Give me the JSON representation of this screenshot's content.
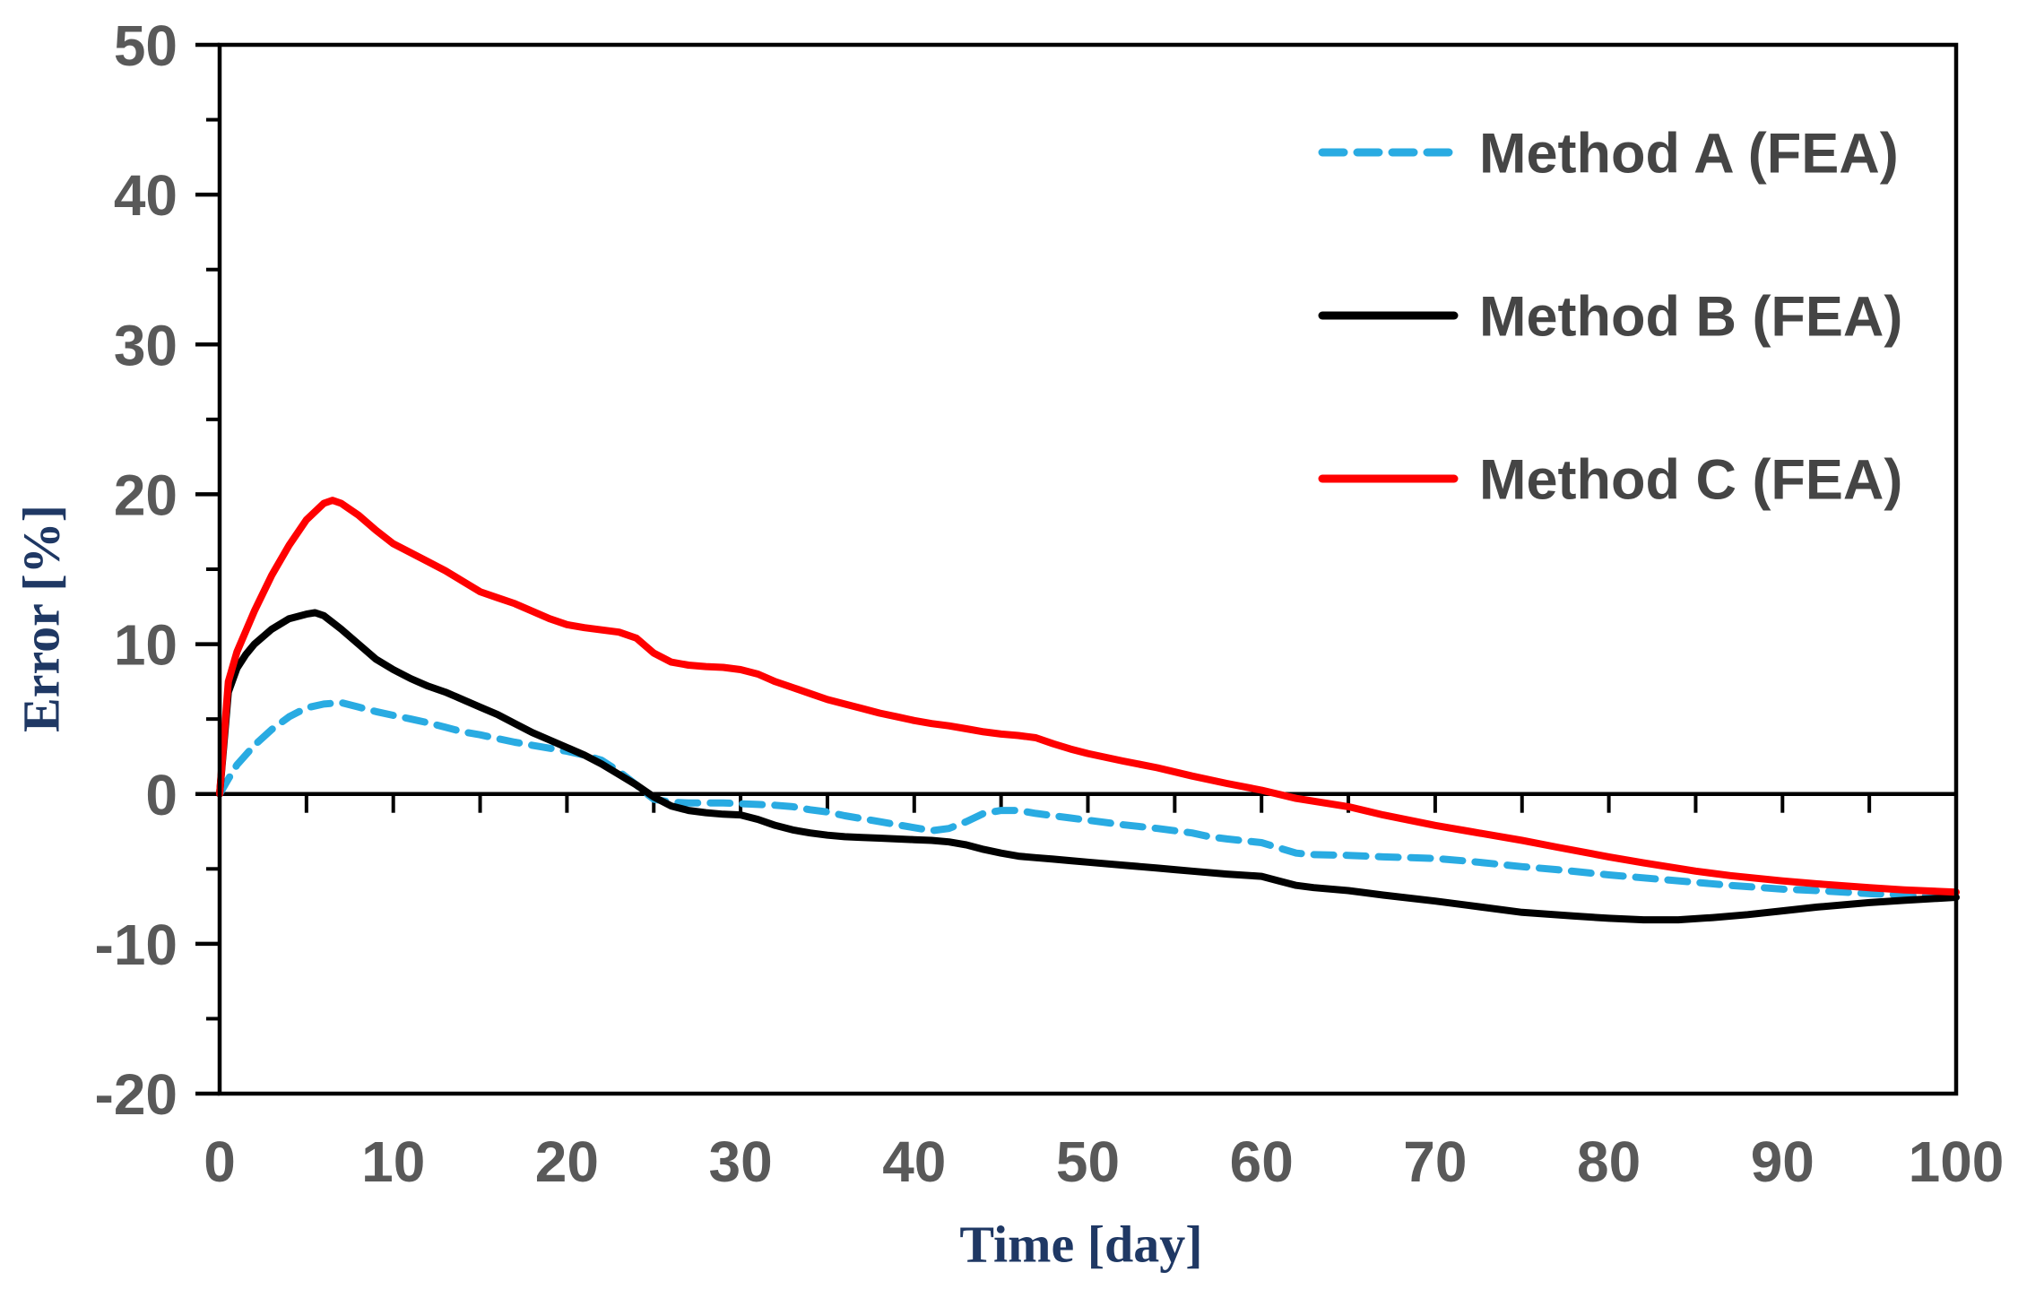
{
  "figure": {
    "background": "#ffffff"
  },
  "colors": {
    "axis_line": "#000000",
    "tick_label": "#595959",
    "legend_label": "#454545",
    "axis_title": "#1F3864",
    "method_a": "#29ABE2",
    "method_b": "#000000",
    "method_c": "#FF0000"
  },
  "chart_data": {
    "type": "line",
    "title": "",
    "xlabel": "Time [day]",
    "ylabel": "Error [%]",
    "xlim": [
      0,
      100
    ],
    "ylim": [
      -20,
      50
    ],
    "x_major_tick_step": 10,
    "x_minor_tick_step": 5,
    "y_major_tick_step": 10,
    "y_minor_tick_step": 5,
    "x_tick_labels": [
      "0",
      "10",
      "20",
      "30",
      "40",
      "50",
      "60",
      "70",
      "80",
      "90",
      "100"
    ],
    "y_tick_labels": [
      "50",
      "40",
      "30",
      "20",
      "10",
      "0",
      "-10",
      "-20"
    ],
    "grid": false,
    "zero_line": true,
    "legend_position": "upper-right-inside",
    "series": [
      {
        "name": "Method A (FEA)",
        "color": "#29ABE2",
        "style": "dashed",
        "points": [
          [
            0,
            0
          ],
          [
            0.5,
            1.0
          ],
          [
            1,
            1.95
          ],
          [
            2,
            3.25
          ],
          [
            3,
            4.3
          ],
          [
            4,
            5.15
          ],
          [
            5,
            5.75
          ],
          [
            6,
            6.0
          ],
          [
            7,
            6.1
          ],
          [
            8,
            5.8
          ],
          [
            9,
            5.5
          ],
          [
            10,
            5.25
          ],
          [
            11,
            5.0
          ],
          [
            12,
            4.75
          ],
          [
            13,
            4.45
          ],
          [
            14,
            4.15
          ],
          [
            15,
            3.95
          ],
          [
            16,
            3.7
          ],
          [
            17,
            3.45
          ],
          [
            18,
            3.25
          ],
          [
            19,
            3.05
          ],
          [
            20,
            2.85
          ],
          [
            21,
            2.6
          ],
          [
            22,
            2.25
          ],
          [
            23,
            1.5
          ],
          [
            24,
            0.6
          ],
          [
            24.5,
            0.1
          ],
          [
            25,
            -0.35
          ],
          [
            26,
            -0.55
          ],
          [
            27,
            -0.6
          ],
          [
            28,
            -0.6
          ],
          [
            29,
            -0.6
          ],
          [
            30,
            -0.65
          ],
          [
            31,
            -0.7
          ],
          [
            32,
            -0.75
          ],
          [
            33,
            -0.85
          ],
          [
            34,
            -1.05
          ],
          [
            35,
            -1.2
          ],
          [
            36,
            -1.45
          ],
          [
            37,
            -1.65
          ],
          [
            38,
            -1.85
          ],
          [
            39,
            -2.05
          ],
          [
            40,
            -2.25
          ],
          [
            41,
            -2.45
          ],
          [
            42,
            -2.3
          ],
          [
            43,
            -1.85
          ],
          [
            44,
            -1.3
          ],
          [
            45,
            -1.1
          ],
          [
            46,
            -1.1
          ],
          [
            47,
            -1.3
          ],
          [
            48,
            -1.45
          ],
          [
            49,
            -1.6
          ],
          [
            50,
            -1.75
          ],
          [
            52,
            -2.05
          ],
          [
            54,
            -2.3
          ],
          [
            55,
            -2.45
          ],
          [
            56,
            -2.6
          ],
          [
            57,
            -2.85
          ],
          [
            58,
            -3.0
          ],
          [
            60,
            -3.25
          ],
          [
            61,
            -3.6
          ],
          [
            62,
            -3.95
          ],
          [
            63,
            -4.05
          ],
          [
            65,
            -4.1
          ],
          [
            67,
            -4.2
          ],
          [
            70,
            -4.3
          ],
          [
            72,
            -4.5
          ],
          [
            75,
            -4.85
          ],
          [
            77,
            -5.05
          ],
          [
            80,
            -5.4
          ],
          [
            82,
            -5.6
          ],
          [
            85,
            -5.9
          ],
          [
            87,
            -6.1
          ],
          [
            90,
            -6.35
          ],
          [
            92,
            -6.45
          ],
          [
            95,
            -6.65
          ],
          [
            97,
            -6.75
          ],
          [
            100,
            -6.9
          ]
        ]
      },
      {
        "name": "Method B (FEA)",
        "color": "#000000",
        "style": "solid",
        "points": [
          [
            0,
            0
          ],
          [
            0.5,
            6.8
          ],
          [
            1,
            8.4
          ],
          [
            1.5,
            9.3
          ],
          [
            2,
            10.0
          ],
          [
            3,
            11.0
          ],
          [
            4,
            11.7
          ],
          [
            5,
            12.0
          ],
          [
            5.5,
            12.1
          ],
          [
            6,
            11.9
          ],
          [
            7,
            11.0
          ],
          [
            8,
            10.0
          ],
          [
            9,
            9.0
          ],
          [
            10,
            8.3
          ],
          [
            11,
            7.7
          ],
          [
            12,
            7.2
          ],
          [
            13,
            6.8
          ],
          [
            14,
            6.3
          ],
          [
            15,
            5.8
          ],
          [
            16,
            5.3
          ],
          [
            17,
            4.7
          ],
          [
            18,
            4.1
          ],
          [
            19,
            3.6
          ],
          [
            20,
            3.1
          ],
          [
            21,
            2.6
          ],
          [
            22,
            2.0
          ],
          [
            23,
            1.3
          ],
          [
            24,
            0.6
          ],
          [
            25,
            -0.2
          ],
          [
            26,
            -0.8
          ],
          [
            27,
            -1.1
          ],
          [
            28,
            -1.25
          ],
          [
            29,
            -1.35
          ],
          [
            30,
            -1.4
          ],
          [
            31,
            -1.7
          ],
          [
            32,
            -2.1
          ],
          [
            33,
            -2.4
          ],
          [
            34,
            -2.6
          ],
          [
            35,
            -2.75
          ],
          [
            36,
            -2.85
          ],
          [
            37,
            -2.9
          ],
          [
            38,
            -2.95
          ],
          [
            39,
            -3.0
          ],
          [
            40,
            -3.05
          ],
          [
            41,
            -3.1
          ],
          [
            42,
            -3.2
          ],
          [
            43,
            -3.4
          ],
          [
            44,
            -3.7
          ],
          [
            45,
            -3.95
          ],
          [
            46,
            -4.15
          ],
          [
            47,
            -4.25
          ],
          [
            48,
            -4.35
          ],
          [
            49,
            -4.45
          ],
          [
            50,
            -4.55
          ],
          [
            52,
            -4.75
          ],
          [
            54,
            -4.95
          ],
          [
            55,
            -5.05
          ],
          [
            56,
            -5.15
          ],
          [
            58,
            -5.35
          ],
          [
            60,
            -5.5
          ],
          [
            61,
            -5.8
          ],
          [
            62,
            -6.1
          ],
          [
            63,
            -6.25
          ],
          [
            65,
            -6.45
          ],
          [
            67,
            -6.75
          ],
          [
            70,
            -7.15
          ],
          [
            72,
            -7.45
          ],
          [
            75,
            -7.9
          ],
          [
            78,
            -8.15
          ],
          [
            80,
            -8.3
          ],
          [
            82,
            -8.4
          ],
          [
            84,
            -8.4
          ],
          [
            86,
            -8.25
          ],
          [
            88,
            -8.05
          ],
          [
            90,
            -7.8
          ],
          [
            92,
            -7.55
          ],
          [
            95,
            -7.25
          ],
          [
            97,
            -7.1
          ],
          [
            100,
            -6.9
          ]
        ]
      },
      {
        "name": "Method C (FEA)",
        "color": "#FF0000",
        "style": "solid",
        "points": [
          [
            0,
            0
          ],
          [
            0.5,
            7.5
          ],
          [
            1,
            9.5
          ],
          [
            2,
            12.2
          ],
          [
            3,
            14.6
          ],
          [
            4,
            16.6
          ],
          [
            5,
            18.3
          ],
          [
            6,
            19.4
          ],
          [
            6.5,
            19.6
          ],
          [
            7,
            19.4
          ],
          [
            8,
            18.6
          ],
          [
            9,
            17.6
          ],
          [
            10,
            16.7
          ],
          [
            11,
            16.1
          ],
          [
            12,
            15.5
          ],
          [
            13,
            14.9
          ],
          [
            14,
            14.2
          ],
          [
            15,
            13.5
          ],
          [
            16,
            13.1
          ],
          [
            17,
            12.7
          ],
          [
            18,
            12.2
          ],
          [
            19,
            11.7
          ],
          [
            20,
            11.3
          ],
          [
            21,
            11.1
          ],
          [
            22,
            10.95
          ],
          [
            23,
            10.8
          ],
          [
            24,
            10.4
          ],
          [
            25,
            9.4
          ],
          [
            26,
            8.8
          ],
          [
            27,
            8.6
          ],
          [
            28,
            8.5
          ],
          [
            29,
            8.45
          ],
          [
            30,
            8.3
          ],
          [
            31,
            8.0
          ],
          [
            32,
            7.5
          ],
          [
            33,
            7.1
          ],
          [
            34,
            6.7
          ],
          [
            35,
            6.3
          ],
          [
            36,
            6.0
          ],
          [
            37,
            5.7
          ],
          [
            38,
            5.4
          ],
          [
            39,
            5.15
          ],
          [
            40,
            4.9
          ],
          [
            41,
            4.7
          ],
          [
            42,
            4.55
          ],
          [
            43,
            4.35
          ],
          [
            44,
            4.15
          ],
          [
            45,
            4.0
          ],
          [
            46,
            3.9
          ],
          [
            47,
            3.75
          ],
          [
            48,
            3.35
          ],
          [
            49,
            3.0
          ],
          [
            50,
            2.7
          ],
          [
            52,
            2.2
          ],
          [
            54,
            1.75
          ],
          [
            56,
            1.2
          ],
          [
            58,
            0.7
          ],
          [
            60,
            0.25
          ],
          [
            62,
            -0.3
          ],
          [
            65,
            -0.85
          ],
          [
            67,
            -1.4
          ],
          [
            70,
            -2.1
          ],
          [
            72,
            -2.5
          ],
          [
            75,
            -3.1
          ],
          [
            77,
            -3.55
          ],
          [
            80,
            -4.2
          ],
          [
            82,
            -4.6
          ],
          [
            85,
            -5.15
          ],
          [
            87,
            -5.45
          ],
          [
            90,
            -5.8
          ],
          [
            92,
            -6.0
          ],
          [
            95,
            -6.25
          ],
          [
            97,
            -6.4
          ],
          [
            100,
            -6.55
          ]
        ]
      }
    ]
  }
}
